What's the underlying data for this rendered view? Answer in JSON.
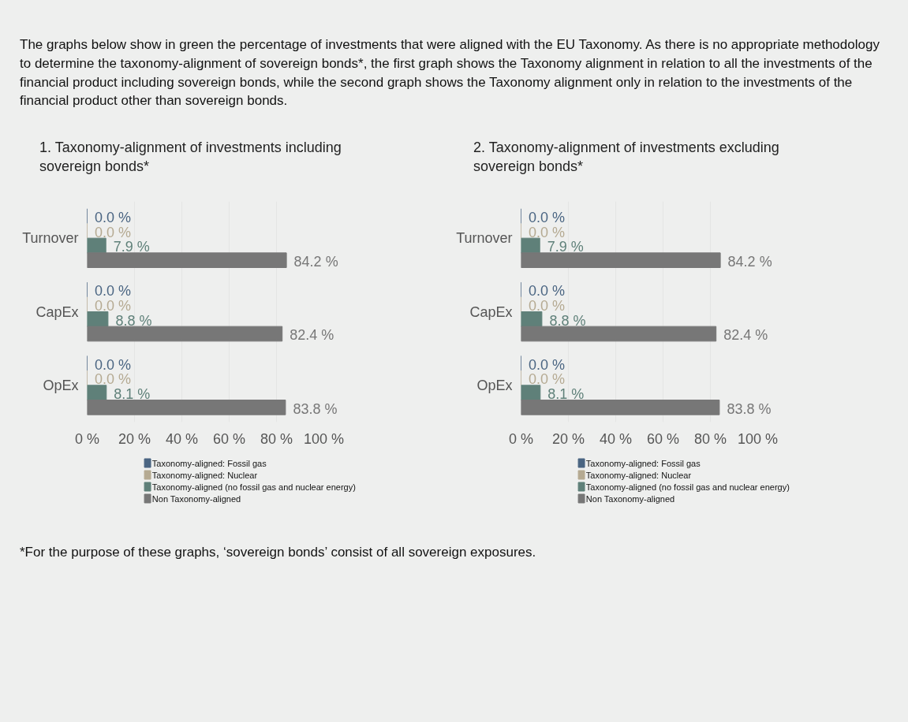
{
  "chart_data": [
    {
      "type": "bar",
      "orientation": "horizontal",
      "title": "1. Taxonomy-alignment of investments including sovereign bonds*",
      "annotations": [
        "The graphs below show in green the percentage of investments that were aligned with the EU Taxonomy. As there is no appropriate methodology to determine the taxonomy-alignment of sovereign bonds*, the first graph shows the Taxonomy alignment in relation to all the investments of the financial product including sovereign bonds, while the second graph shows the Taxonomy alignment only in relation to the investments of the financial product other than sovereign bonds."
      ],
      "categories": [
        "Turnover",
        "CapEx",
        "OpEx"
      ],
      "series": [
        {
          "name": "Taxonomy-aligned: Fossil gas",
          "color": "#4a6582",
          "values": [
            0.0,
            0.0,
            0.0
          ],
          "value_labels": [
            "0.0 %",
            "0.0 %",
            "0.0 %"
          ]
        },
        {
          "name": "Taxonomy-aligned: Nuclear",
          "color": "#b5aa92",
          "values": [
            0.0,
            0.0,
            0.0
          ],
          "value_labels": [
            "0.0 %",
            "0.0 %",
            "0.0 %"
          ]
        },
        {
          "name": "Taxonomy-aligned (no fossil gas and nuclear energy)",
          "color": "#5f8079",
          "values": [
            7.9,
            8.8,
            8.1
          ],
          "value_labels": [
            "7.9 %",
            "8.8 %",
            "8.1 %"
          ]
        },
        {
          "name": "Non Taxonomy-aligned",
          "color": "#777777",
          "values": [
            84.2,
            82.4,
            83.8
          ],
          "value_labels": [
            "84.2 %",
            "82.4 %",
            "83.8 %"
          ]
        }
      ],
      "xlim": [
        0,
        100
      ],
      "xticks": [
        {
          "value": 0,
          "label": "0 %"
        },
        {
          "value": 20,
          "label": "20 %"
        },
        {
          "value": 40,
          "label": "40 %"
        },
        {
          "value": 60,
          "label": "60 %"
        },
        {
          "value": 80,
          "label": "80 %"
        },
        {
          "value": 100,
          "label": "100 %"
        }
      ],
      "grid": "x",
      "legend": "bottom"
    },
    {
      "type": "bar",
      "orientation": "horizontal",
      "title": "2. Taxonomy-alignment of investments excluding sovereign bonds*",
      "annotations": [
        "*For the purpose of these graphs, ‘sovereign bonds’ consist of all sovereign exposures."
      ],
      "categories": [
        "Turnover",
        "CapEx",
        "OpEx"
      ],
      "series": [
        {
          "name": "Taxonomy-aligned: Fossil gas",
          "color": "#4a6582",
          "values": [
            0.0,
            0.0,
            0.0
          ],
          "value_labels": [
            "0.0 %",
            "0.0 %",
            "0.0 %"
          ]
        },
        {
          "name": "Taxonomy-aligned: Nuclear",
          "color": "#b5aa92",
          "values": [
            0.0,
            0.0,
            0.0
          ],
          "value_labels": [
            "0.0 %",
            "0.0 %",
            "0.0 %"
          ]
        },
        {
          "name": "Taxonomy-aligned (no fossil gas and nuclear energy)",
          "color": "#5f8079",
          "values": [
            7.9,
            8.8,
            8.1
          ],
          "value_labels": [
            "7.9 %",
            "8.8 %",
            "8.1 %"
          ]
        },
        {
          "name": "Non Taxonomy-aligned",
          "color": "#777777",
          "values": [
            84.2,
            82.4,
            83.8
          ],
          "value_labels": [
            "84.2 %",
            "82.4 %",
            "83.8 %"
          ]
        }
      ],
      "xlim": [
        0,
        100
      ],
      "xticks": [
        {
          "value": 0,
          "label": "0 %"
        },
        {
          "value": 20,
          "label": "20 %"
        },
        {
          "value": 40,
          "label": "40 %"
        },
        {
          "value": 60,
          "label": "60 %"
        },
        {
          "value": 80,
          "label": "80 %"
        },
        {
          "value": 100,
          "label": "100 %"
        }
      ],
      "grid": "x",
      "legend": "bottom"
    }
  ]
}
